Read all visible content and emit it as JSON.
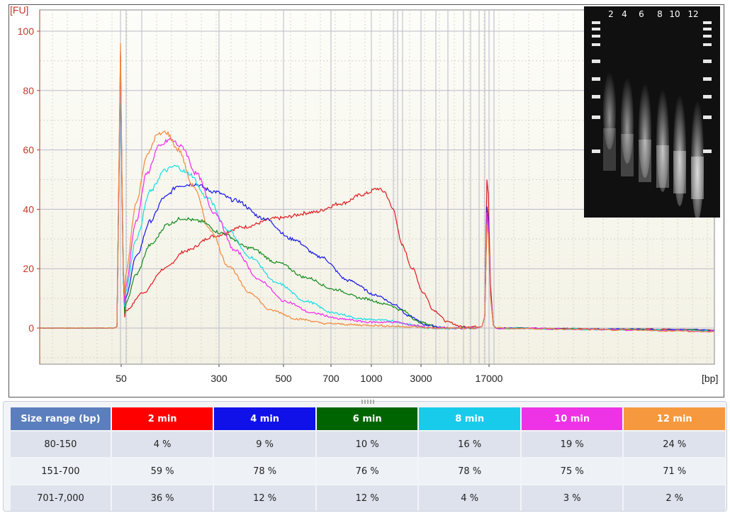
{
  "chart_data": {
    "type": "line",
    "ylabel": "[FU]",
    "xlabel": "[bp]",
    "ylim": [
      -12,
      105
    ],
    "y_ticks": [
      "0",
      "20",
      "40",
      "60",
      "80",
      "100"
    ],
    "x_ticks": [
      "50",
      "300",
      "500",
      "700",
      "1000",
      "3000",
      "17000"
    ],
    "series": [
      {
        "name": "2 min",
        "color": "#e0191e"
      },
      {
        "name": "4 min",
        "color": "#1515e6"
      },
      {
        "name": "6 min",
        "color": "#118a1c"
      },
      {
        "name": "8 min",
        "color": "#14dce6"
      },
      {
        "name": "10 min",
        "color": "#ef29ef"
      },
      {
        "name": "12 min",
        "color": "#f0873a"
      }
    ],
    "inset_lane_labels": [
      "2",
      "4",
      "6",
      "8",
      "10",
      "12"
    ]
  },
  "table": {
    "header": [
      "Size range (bp)",
      "2 min",
      "4 min",
      "6 min",
      "8 min",
      "10 min",
      "12 min"
    ],
    "header_colors": [
      "#5b7fbd",
      "#ff0000",
      "#1010e8",
      "#006400",
      "#19cbeb",
      "#ee32e5",
      "#f6993e"
    ],
    "rows": [
      [
        "80-150",
        "4 %",
        "9 %",
        "10 %",
        "16 %",
        "19 %",
        "24 %"
      ],
      [
        "151-700",
        "59 %",
        "78 %",
        "76 %",
        "78 %",
        "75 %",
        "71 %"
      ],
      [
        "701-7,000",
        "36 %",
        "12 %",
        "12 %",
        "4 %",
        "3 %",
        "2 %"
      ]
    ]
  }
}
